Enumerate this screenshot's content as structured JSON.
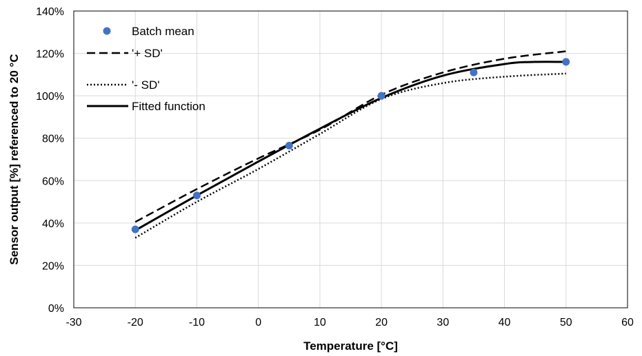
{
  "chart_data": {
    "type": "line",
    "title": "",
    "xlabel": "Temperature [°C]",
    "ylabel": "Sensor output [%] referenced to 20 °C",
    "xlim": [
      -30,
      60
    ],
    "ylim": [
      0,
      140
    ],
    "x_ticks": [
      "-30",
      "-20",
      "-10",
      "0",
      "10",
      "20",
      "30",
      "40",
      "50",
      "60"
    ],
    "y_ticks": [
      "0%",
      "20%",
      "40%",
      "60%",
      "80%",
      "100%",
      "120%",
      "140%"
    ],
    "grid": true,
    "legend_position": "top-left",
    "series": [
      {
        "name": "Batch mean",
        "style": "markers",
        "color": "#4472C4",
        "points": [
          [
            -20,
            37
          ],
          [
            -10,
            53
          ],
          [
            5,
            76.5
          ],
          [
            20,
            100
          ],
          [
            35,
            111
          ],
          [
            50,
            116
          ]
        ]
      },
      {
        "name": "'+ SD'",
        "style": "dashed",
        "color": "#000000",
        "points": [
          [
            -20,
            40.5
          ],
          [
            -10,
            56
          ],
          [
            0,
            70.5
          ],
          [
            10,
            84
          ],
          [
            20,
            100.5
          ],
          [
            30,
            111
          ],
          [
            40,
            117.5
          ],
          [
            50,
            121
          ]
        ]
      },
      {
        "name": "'- SD'",
        "style": "dotted",
        "color": "#000000",
        "points": [
          [
            -20,
            33
          ],
          [
            -10,
            50
          ],
          [
            0,
            65.5
          ],
          [
            10,
            82
          ],
          [
            20,
            98.5
          ],
          [
            30,
            106
          ],
          [
            40,
            109
          ],
          [
            50,
            110.5
          ]
        ]
      },
      {
        "name": "Fitted function",
        "style": "solid",
        "color": "#000000",
        "points": [
          [
            -20,
            36.5
          ],
          [
            -10,
            53
          ],
          [
            0,
            69
          ],
          [
            10,
            84.5
          ],
          [
            20,
            99
          ],
          [
            30,
            109.5
          ],
          [
            40,
            115
          ],
          [
            45,
            116
          ],
          [
            50,
            116
          ]
        ]
      }
    ]
  }
}
